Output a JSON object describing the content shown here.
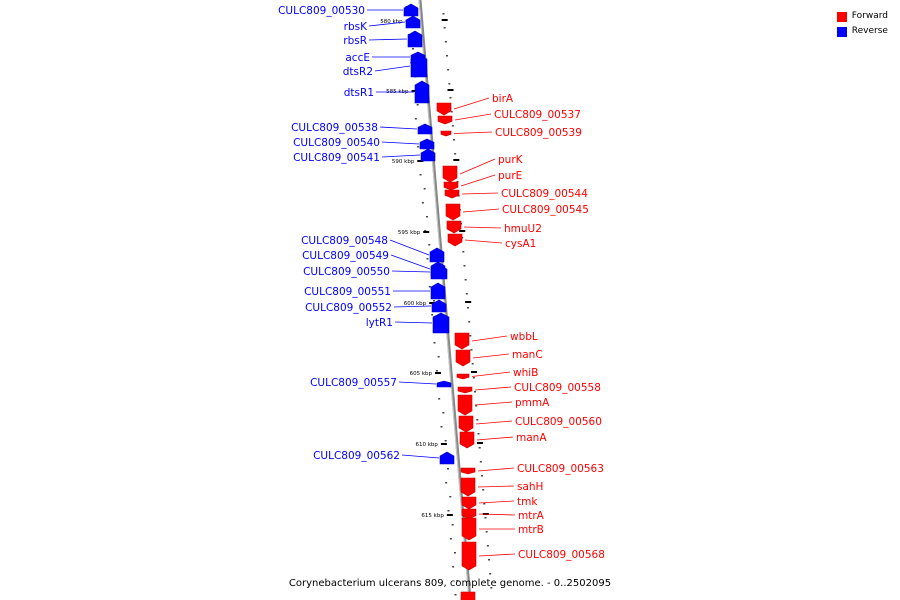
{
  "title": "Corynebacterium ulcerans 809, complete genome. - 0..2502095",
  "legend": {
    "forward_label": "Forward",
    "reverse_label": "Reverse",
    "forward_color": "#ff0000",
    "reverse_color": "#0000ff"
  },
  "scale_markers": [
    "580 kbp",
    "585 kbp",
    "590 kbp",
    "595 kbp",
    "600 kbp",
    "605 kbp",
    "610 kbp",
    "615 kbp"
  ],
  "reverse_genes": [
    "CULC809_00530",
    "rbsK",
    "rbsR",
    "accE",
    "dtsR2",
    "dtsR1",
    "CULC809_00538",
    "CULC809_00540",
    "CULC809_00541",
    "CULC809_00548",
    "CULC809_00549",
    "CULC809_00550",
    "CULC809_00551",
    "CULC809_00552",
    "lytR1",
    "CULC809_00557",
    "CULC809_00562"
  ],
  "forward_genes": [
    "birA",
    "CULC809_00537",
    "CULC809_00539",
    "purK",
    "purE",
    "CULC809_00544",
    "CULC809_00545",
    "hmuU2",
    "cysA1",
    "wbbL",
    "manC",
    "whiB",
    "CULC809_00558",
    "pmmA",
    "CULC809_00560",
    "manA",
    "CULC809_00563",
    "sahH",
    "tmk",
    "mtrA",
    "mtrB",
    "CULC809_00568"
  ]
}
